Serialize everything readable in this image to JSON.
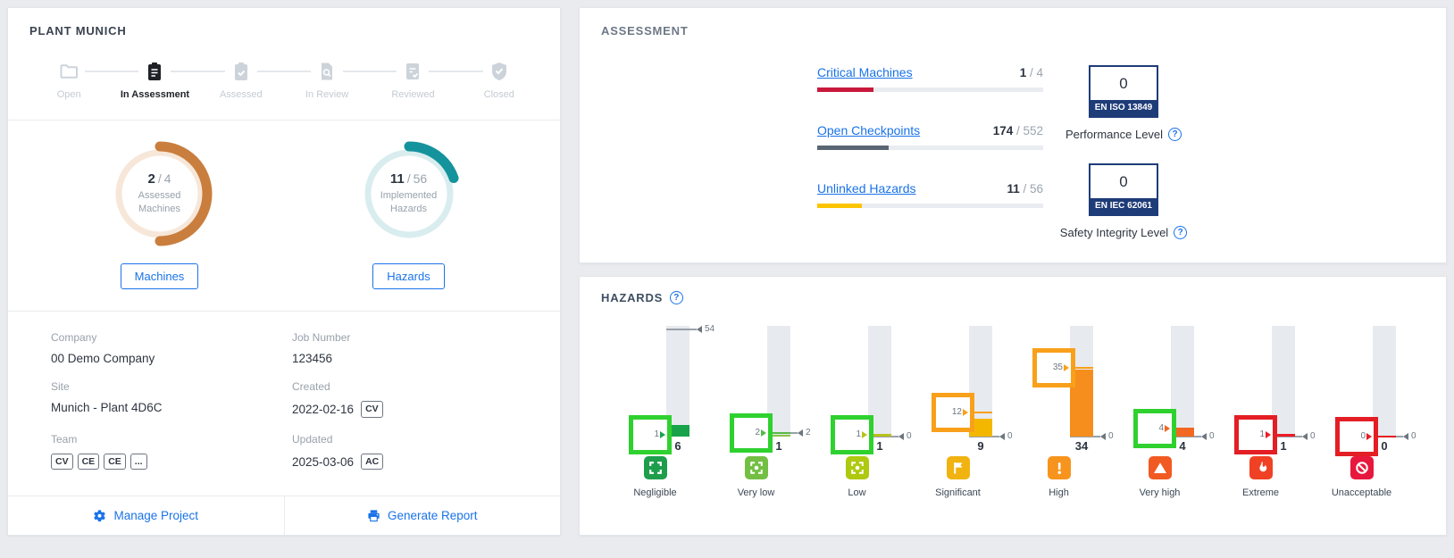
{
  "ui": {
    "fraction_separator": "/",
    "help_glyph": "?"
  },
  "plant": {
    "title": "PLANT MUNICH",
    "stepper": {
      "steps": [
        {
          "label": "Open",
          "state": "inactive"
        },
        {
          "label": "In Assessment",
          "state": "active"
        },
        {
          "label": "Assessed",
          "state": "inactive"
        },
        {
          "label": "In Review",
          "state": "inactive"
        },
        {
          "label": "Reviewed",
          "state": "inactive"
        },
        {
          "label": "Closed",
          "state": "inactive"
        }
      ]
    },
    "machines_donut": {
      "value": "2",
      "total": "4",
      "line1": "Assessed",
      "line2": "Machines",
      "button_label": "Machines",
      "arc_color": "#c97e3e",
      "ring_color": "#f6e7d9"
    },
    "hazards_donut": {
      "value": "11",
      "total": "56",
      "line1": "Implemented",
      "line2": "Hazards",
      "button_label": "Hazards",
      "arc_color": "#15939c",
      "ring_color": "#d9edef"
    },
    "details": {
      "company_label": "Company",
      "company": "00 Demo Company",
      "site_label": "Site",
      "site": "Munich - Plant 4D6C",
      "team_label": "Team",
      "team_chips": [
        "CV",
        "CE",
        "CE",
        "..."
      ],
      "job_label": "Job Number",
      "job": "123456",
      "created_label": "Created",
      "created": "2022-02-16",
      "created_chip": "CV",
      "updated_label": "Updated",
      "updated": "2025-03-06",
      "updated_chip": "AC"
    },
    "footer": {
      "manage": "Manage Project",
      "report": "Generate Report"
    }
  },
  "assessment": {
    "title": "ASSESSMENT",
    "rows": [
      {
        "label": "Critical Machines",
        "value": 1,
        "total": 4,
        "color": "#c8193c"
      },
      {
        "label": "Open Checkpoints",
        "value": 174,
        "total": 552,
        "color": "#5a6573"
      },
      {
        "label": "Unlinked Hazards",
        "value": 11,
        "total": 56,
        "color": "#fdc500"
      }
    ],
    "standards": [
      {
        "value": "0",
        "code": "EN ISO 13849",
        "caption": "Performance Level"
      },
      {
        "value": "0",
        "code": "EN IEC 62061",
        "caption": "Safety Integrity Level"
      }
    ]
  },
  "hazards_panel": {
    "title": "HAZARDS"
  },
  "chart_data": {
    "type": "bar",
    "title": "HAZARDS",
    "ylim": [
      0,
      56
    ],
    "categories": [
      "Negligible",
      "Very low",
      "Low",
      "Significant",
      "High",
      "Very high",
      "Extreme",
      "Unacceptable"
    ],
    "values": [
      6,
      1,
      1,
      9,
      34,
      4,
      1,
      0
    ],
    "left_markers": [
      1,
      2,
      1,
      12,
      35,
      4,
      1,
      0
    ],
    "right_markers": [
      54,
      2,
      0,
      0,
      0,
      0,
      0,
      0
    ],
    "bar_colors": [
      "#18a34b",
      "#8bc34a",
      "#b8c11c",
      "#f3b700",
      "#f68e1e",
      "#f26722",
      "#ed1c24",
      "#e8173d"
    ],
    "square_colors": [
      "#2fd12f",
      "#2fd12f",
      "#2fd12f",
      "#f9a01b",
      "#f9a01b",
      "#2fd12f",
      "#e31e24",
      "#e31e24"
    ],
    "marker_colors": [
      "#18a34b",
      "#56b947",
      "#b8c11c",
      "#f9a01b",
      "#f9a01b",
      "#f26722",
      "#ed1c24",
      "#e31e24"
    ],
    "icons": [
      "focus",
      "focus-dot",
      "focus-dot",
      "flag",
      "exclamation",
      "warning",
      "flame",
      "no-entry"
    ],
    "icon_colors": [
      "#1e9e4c",
      "#72bf44",
      "#aec90f",
      "#f0b310",
      "#f7941d",
      "#f15a22",
      "#f04124",
      "#e8173d"
    ]
  }
}
